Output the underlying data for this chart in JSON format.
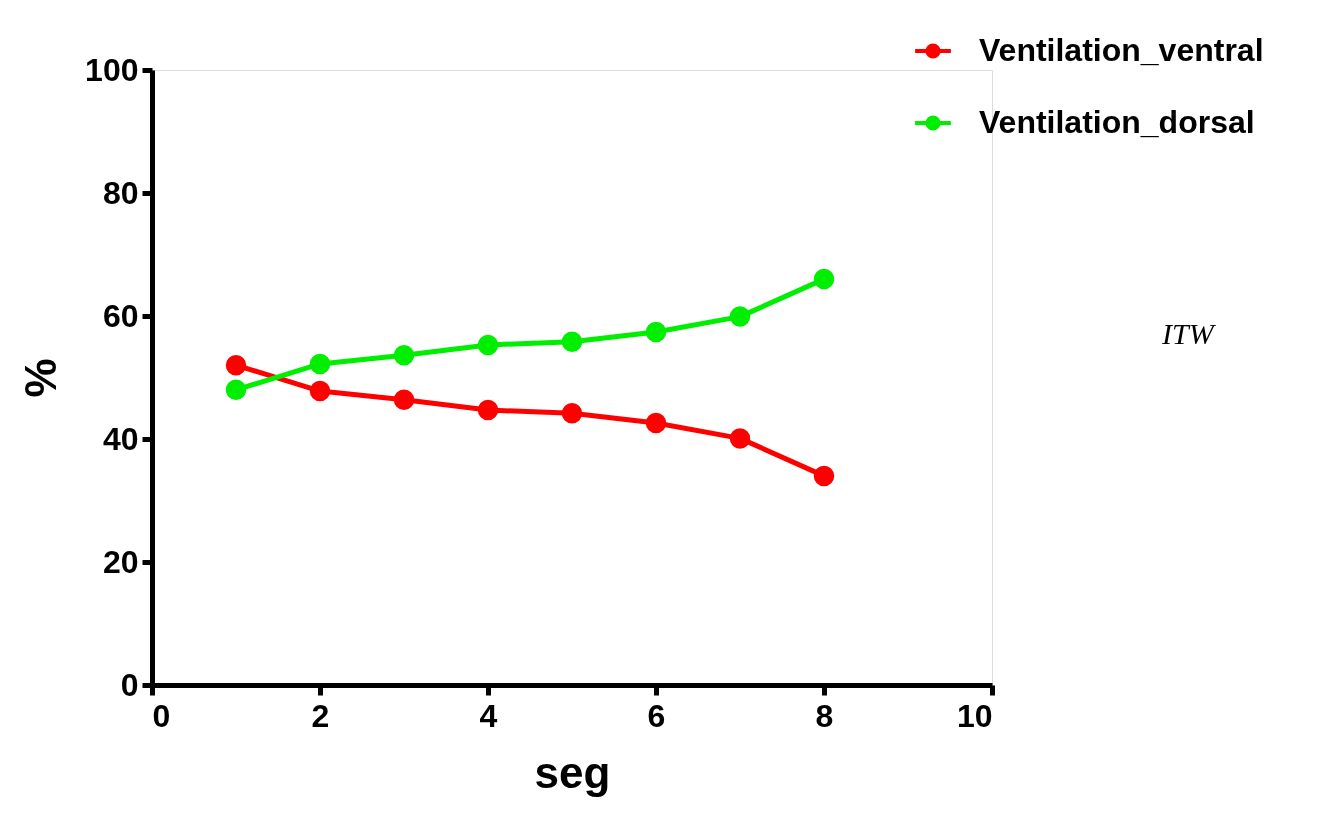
{
  "chart_data": {
    "type": "line",
    "xlabel": "seg",
    "ylabel": "%",
    "x": [
      1,
      2,
      3,
      4,
      5,
      6,
      7,
      8
    ],
    "series": [
      {
        "name": "Ventilation_ventral",
        "color": "#ff0000",
        "values": [
          52,
          47.8,
          46.4,
          44.7,
          44.2,
          42.6,
          40.1,
          34
        ]
      },
      {
        "name": "Ventilation_dorsal",
        "color": "#00ee00",
        "values": [
          48,
          52.2,
          53.6,
          55.3,
          55.8,
          57.4,
          59.9,
          66
        ]
      }
    ],
    "xlim": [
      0,
      10
    ],
    "xticks": [
      0,
      2,
      4,
      6,
      8,
      10
    ],
    "ylim": [
      0,
      100
    ],
    "yticks": [
      0,
      20,
      40,
      60,
      80,
      100
    ],
    "grid": false,
    "legend": "top right",
    "marker": "circle",
    "line_style": "solid",
    "annotations": [
      "ITW"
    ]
  }
}
